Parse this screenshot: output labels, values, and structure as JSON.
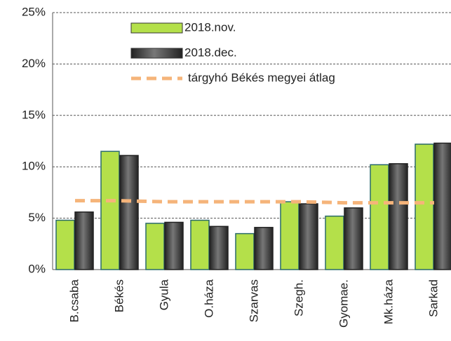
{
  "chart_data": {
    "type": "bar",
    "categories": [
      "B.csaba",
      "Békés",
      "Gyula",
      "O.háza",
      "Szarvas",
      "Szegh.",
      "Gyomae.",
      "Mk.háza",
      "Sarkad"
    ],
    "series": [
      {
        "name": "2018.nov.",
        "color": "#b4e04a",
        "values": [
          4.8,
          11.5,
          4.5,
          4.8,
          3.5,
          6.6,
          5.2,
          10.2,
          12.2
        ]
      },
      {
        "name": "2018.dec.",
        "color": "#484848",
        "values": [
          5.6,
          11.1,
          4.6,
          4.2,
          4.1,
          6.4,
          6.0,
          10.3,
          12.3
        ]
      },
      {
        "name": "tárgyhó Békés megyei átlag",
        "color": "#f5b47a",
        "type": "line",
        "values": [
          6.7,
          6.7,
          6.6,
          6.6,
          6.6,
          6.6,
          6.5,
          6.5,
          6.5
        ]
      }
    ],
    "ylim": [
      0,
      25
    ],
    "yticks": [
      {
        "value": 0,
        "label": "0%"
      },
      {
        "value": 5,
        "label": "5%"
      },
      {
        "value": 10,
        "label": "10%"
      },
      {
        "value": 15,
        "label": "15%"
      },
      {
        "value": 20,
        "label": "20%"
      },
      {
        "value": 25,
        "label": "25%"
      }
    ],
    "grid": true
  }
}
